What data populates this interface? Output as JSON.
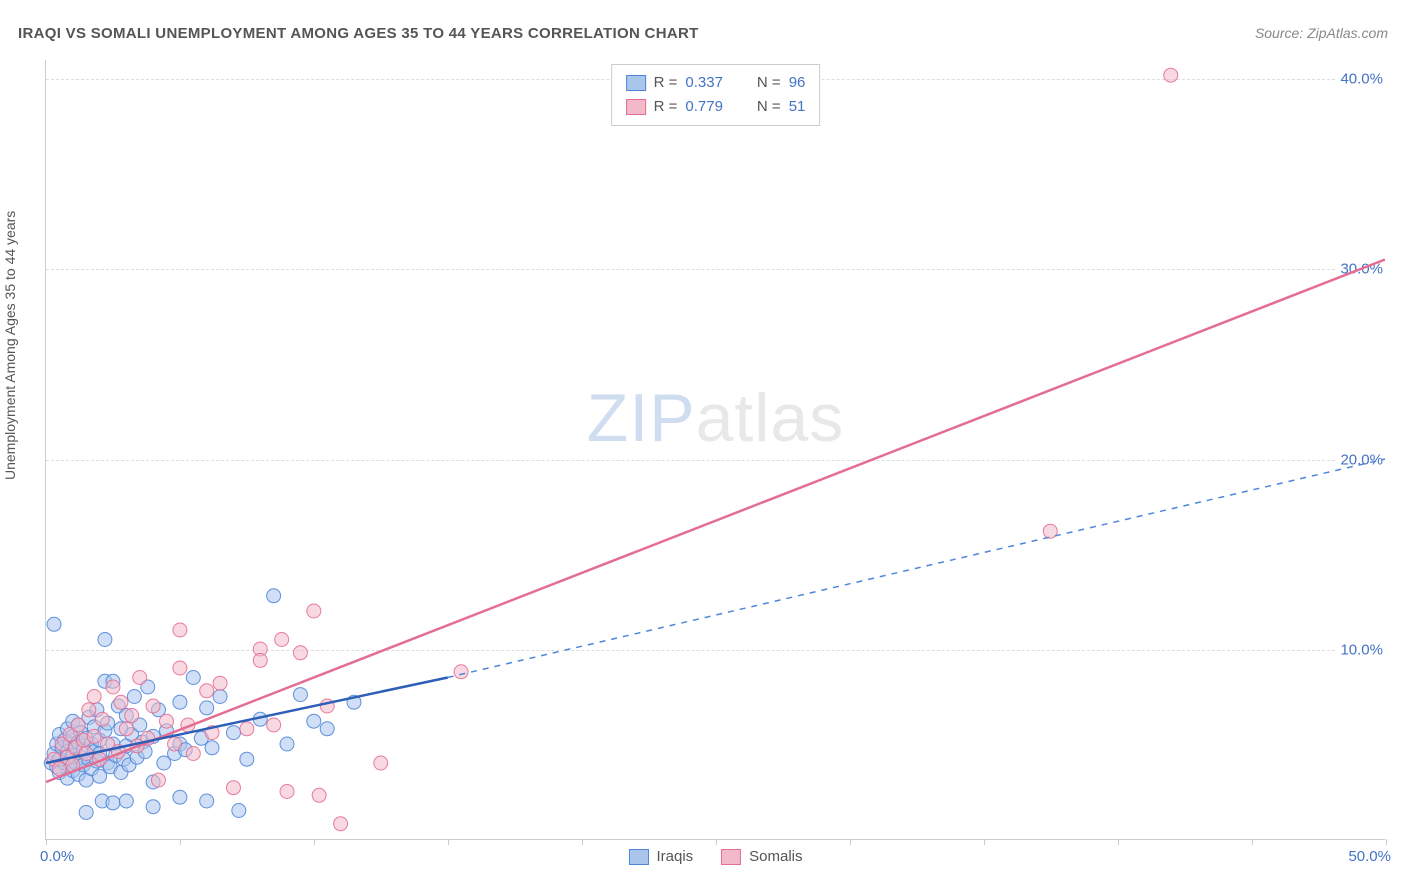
{
  "header": {
    "title": "IRAQI VS SOMALI UNEMPLOYMENT AMONG AGES 35 TO 44 YEARS CORRELATION CHART",
    "source_prefix": "Source: ",
    "source": "ZipAtlas.com"
  },
  "yaxis": {
    "label": "Unemployment Among Ages 35 to 44 years"
  },
  "chart": {
    "type": "scatter",
    "xlim": [
      0,
      50
    ],
    "ylim": [
      0,
      41
    ],
    "x_tick_positions": [
      0,
      5,
      10,
      15,
      20,
      25,
      30,
      35,
      40,
      45,
      50
    ],
    "y_grid_positions": [
      10,
      20,
      30,
      40
    ],
    "x_labels": {
      "min": "0.0%",
      "max": "50.0%"
    },
    "y_labels": [
      {
        "v": 10,
        "t": "10.0%"
      },
      {
        "v": 20,
        "t": "20.0%"
      },
      {
        "v": 30,
        "t": "30.0%"
      },
      {
        "v": 40,
        "t": "40.0%"
      }
    ],
    "background_color": "#ffffff",
    "grid_color": "#dddddd",
    "axis_color": "#cccccc",
    "marker_radius": 7,
    "marker_opacity": 0.55,
    "marker_stroke_opacity": 0.9,
    "line_width_solid": 2.5,
    "line_width_dashed": 1.5,
    "dash_pattern": "6,6",
    "series": {
      "iraqis": {
        "label": "Iraqis",
        "color_fill": "#a9c5ec",
        "color_stroke": "#4f86d9",
        "R": "0.337",
        "N": "96",
        "trend_solid": {
          "x1": 0,
          "y1": 4.0,
          "x2": 15,
          "y2": 8.5
        },
        "trend_dashed": {
          "x1": 15,
          "y1": 8.5,
          "x2": 50,
          "y2": 20.0
        },
        "points": [
          [
            0.2,
            4.0
          ],
          [
            0.3,
            4.5
          ],
          [
            0.4,
            3.8
          ],
          [
            0.4,
            5.0
          ],
          [
            0.5,
            4.2
          ],
          [
            0.5,
            3.5
          ],
          [
            0.5,
            5.5
          ],
          [
            0.6,
            4.8
          ],
          [
            0.7,
            4.0
          ],
          [
            0.7,
            5.2
          ],
          [
            0.8,
            3.2
          ],
          [
            0.8,
            4.6
          ],
          [
            0.8,
            5.8
          ],
          [
            0.9,
            4.1
          ],
          [
            0.9,
            5.0
          ],
          [
            1.0,
            3.6
          ],
          [
            1.0,
            4.4
          ],
          [
            1.0,
            5.4
          ],
          [
            1.0,
            6.2
          ],
          [
            1.1,
            4.0
          ],
          [
            1.1,
            4.9
          ],
          [
            1.2,
            3.4
          ],
          [
            1.2,
            5.1
          ],
          [
            1.2,
            6.0
          ],
          [
            1.3,
            4.3
          ],
          [
            1.3,
            5.6
          ],
          [
            1.4,
            3.9
          ],
          [
            1.4,
            4.7
          ],
          [
            1.5,
            1.4
          ],
          [
            1.5,
            5.3
          ],
          [
            1.5,
            3.1
          ],
          [
            1.6,
            4.2
          ],
          [
            1.6,
            6.4
          ],
          [
            1.7,
            5.0
          ],
          [
            1.7,
            3.7
          ],
          [
            1.8,
            4.6
          ],
          [
            1.8,
            5.9
          ],
          [
            1.9,
            4.1
          ],
          [
            1.9,
            6.8
          ],
          [
            2.0,
            3.3
          ],
          [
            2.0,
            5.2
          ],
          [
            2.0,
            4.5
          ],
          [
            2.1,
            2.0
          ],
          [
            2.2,
            5.7
          ],
          [
            2.2,
            8.3
          ],
          [
            2.3,
            4.0
          ],
          [
            2.3,
            6.1
          ],
          [
            2.4,
            3.8
          ],
          [
            2.5,
            8.3
          ],
          [
            2.5,
            5.0
          ],
          [
            2.5,
            1.9
          ],
          [
            2.6,
            4.4
          ],
          [
            2.7,
            7.0
          ],
          [
            2.8,
            3.5
          ],
          [
            2.8,
            5.8
          ],
          [
            2.9,
            4.2
          ],
          [
            3.0,
            6.5
          ],
          [
            3.0,
            2.0
          ],
          [
            3.0,
            4.9
          ],
          [
            3.1,
            3.9
          ],
          [
            3.2,
            5.5
          ],
          [
            3.3,
            7.5
          ],
          [
            3.4,
            4.3
          ],
          [
            3.5,
            6.0
          ],
          [
            3.6,
            5.1
          ],
          [
            3.7,
            4.6
          ],
          [
            3.8,
            8.0
          ],
          [
            4.0,
            3.0
          ],
          [
            4.0,
            1.7
          ],
          [
            4.0,
            5.4
          ],
          [
            4.2,
            6.8
          ],
          [
            4.4,
            4.0
          ],
          [
            4.5,
            5.7
          ],
          [
            4.8,
            4.5
          ],
          [
            5.0,
            7.2
          ],
          [
            5.0,
            2.2
          ],
          [
            5.0,
            5.0
          ],
          [
            5.2,
            4.7
          ],
          [
            5.5,
            8.5
          ],
          [
            5.8,
            5.3
          ],
          [
            6.0,
            2.0
          ],
          [
            6.0,
            6.9
          ],
          [
            6.2,
            4.8
          ],
          [
            6.5,
            7.5
          ],
          [
            7.0,
            5.6
          ],
          [
            7.2,
            1.5
          ],
          [
            7.5,
            4.2
          ],
          [
            8.0,
            6.3
          ],
          [
            8.5,
            12.8
          ],
          [
            9.0,
            5.0
          ],
          [
            9.5,
            7.6
          ],
          [
            10.0,
            6.2
          ],
          [
            10.5,
            5.8
          ],
          [
            11.5,
            7.2
          ],
          [
            0.3,
            11.3
          ],
          [
            2.2,
            10.5
          ]
        ]
      },
      "somalis": {
        "label": "Somalis",
        "color_fill": "#f2b9c9",
        "color_stroke": "#e46e93",
        "R": "0.779",
        "N": "51",
        "trend_solid": {
          "x1": 0,
          "y1": 3.0,
          "x2": 50,
          "y2": 30.5
        },
        "points": [
          [
            0.3,
            4.2
          ],
          [
            0.5,
            3.7
          ],
          [
            0.6,
            5.0
          ],
          [
            0.8,
            4.3
          ],
          [
            0.9,
            5.5
          ],
          [
            1.0,
            3.9
          ],
          [
            1.1,
            4.8
          ],
          [
            1.2,
            6.0
          ],
          [
            1.4,
            5.2
          ],
          [
            1.5,
            4.5
          ],
          [
            1.6,
            6.8
          ],
          [
            1.8,
            5.4
          ],
          [
            1.8,
            7.5
          ],
          [
            2.0,
            4.2
          ],
          [
            2.1,
            6.3
          ],
          [
            2.3,
            5.0
          ],
          [
            2.5,
            8.0
          ],
          [
            2.7,
            4.6
          ],
          [
            2.8,
            7.2
          ],
          [
            3.0,
            5.8
          ],
          [
            3.2,
            6.5
          ],
          [
            3.4,
            4.9
          ],
          [
            3.5,
            8.5
          ],
          [
            3.8,
            5.3
          ],
          [
            4.0,
            7.0
          ],
          [
            4.2,
            3.1
          ],
          [
            4.5,
            6.2
          ],
          [
            4.8,
            5.0
          ],
          [
            5.0,
            9.0
          ],
          [
            5.0,
            11.0
          ],
          [
            5.3,
            6.0
          ],
          [
            5.5,
            4.5
          ],
          [
            6.0,
            7.8
          ],
          [
            6.2,
            5.6
          ],
          [
            6.5,
            8.2
          ],
          [
            7.0,
            2.7
          ],
          [
            7.5,
            5.8
          ],
          [
            8.0,
            10.0
          ],
          [
            8.0,
            9.4
          ],
          [
            8.5,
            6.0
          ],
          [
            8.8,
            10.5
          ],
          [
            9.0,
            2.5
          ],
          [
            9.5,
            9.8
          ],
          [
            10.0,
            12.0
          ],
          [
            10.2,
            2.3
          ],
          [
            10.5,
            7.0
          ],
          [
            11.0,
            0.8
          ],
          [
            12.5,
            4.0
          ],
          [
            15.5,
            8.8
          ],
          [
            37.5,
            16.2
          ],
          [
            42.0,
            40.2
          ]
        ]
      }
    }
  },
  "legend_box": {
    "r_label": "R = ",
    "n_label": "N = "
  },
  "watermark": {
    "part1": "ZIP",
    "part2": "atlas"
  }
}
